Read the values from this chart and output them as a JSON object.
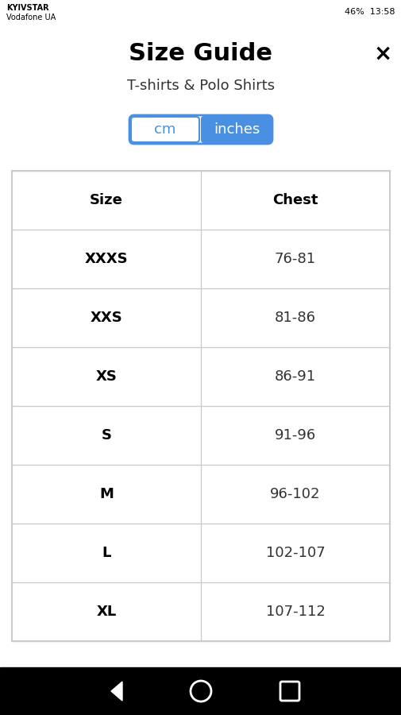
{
  "title": "Size Guide",
  "subtitle": "T-shirts & Polo Shirts",
  "btn_left": "cm",
  "btn_right": "inches",
  "btn_color_active": "#4a90e2",
  "btn_border_color": "#4a90e2",
  "col_headers": [
    "Size",
    "Chest"
  ],
  "rows": [
    [
      "XXXS",
      "76-81"
    ],
    [
      "XXS",
      "81-86"
    ],
    [
      "XS",
      "86-91"
    ],
    [
      "S",
      "91-96"
    ],
    [
      "M",
      "96-102"
    ],
    [
      "L",
      "102-107"
    ],
    [
      "XL",
      "107-112"
    ]
  ],
  "close_symbol": "×",
  "bg_color": "#ffffff",
  "table_border_color": "#cccccc",
  "nav_bar_color": "#000000",
  "status_bar_bg": "#ffffff",
  "title_fontsize": 22,
  "subtitle_fontsize": 13,
  "header_fontsize": 13,
  "row_fontsize": 13
}
